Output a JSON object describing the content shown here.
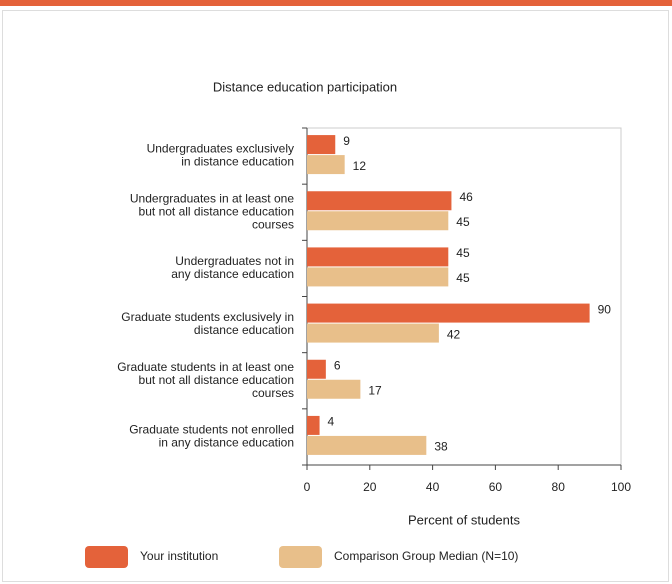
{
  "chart_data": {
    "type": "bar",
    "orientation": "horizontal",
    "title": "Distance education participation",
    "xlabel": "Percent of students",
    "categories": [
      "Undergraduates exclusively\nin distance education",
      "Undergraduates in at least one\nbut not all distance education\ncourses",
      "Undergraduates not in\nany distance education",
      "Graduate students exclusively in\ndistance education",
      "Graduate students in at least one\nbut not all distance education\ncourses",
      "Graduate students not enrolled\nin any distance education"
    ],
    "series": [
      {
        "name": "Your institution",
        "color": "#e4623a",
        "values": [
          9,
          46,
          45,
          90,
          6,
          4
        ]
      },
      {
        "name": "Comparison Group Median (N=10)",
        "color": "#e8bf8a",
        "values": [
          12,
          45,
          45,
          42,
          17,
          38
        ]
      }
    ],
    "xlim": [
      0,
      100
    ],
    "xticks": [
      0,
      20,
      40,
      60,
      80,
      100
    ],
    "grid": false,
    "legend": "bottom"
  }
}
